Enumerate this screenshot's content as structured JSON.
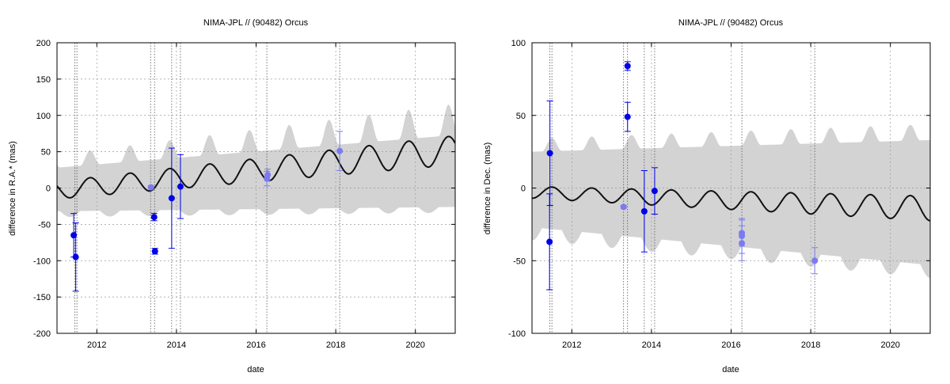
{
  "colors": {
    "envelope": "#d3d3d3",
    "curve": "#111111",
    "dark_points": "#0000e6",
    "light_points": "#7b7bf0",
    "grid": "#9a9a9a"
  },
  "chart_data": [
    {
      "type": "scatter",
      "title": "NIMA-JPL // (90482) Orcus",
      "xlabel": "date",
      "ylabel": "difference in R.A.* (mas)",
      "xlim": [
        2011.0,
        2021.0
      ],
      "ylim": [
        -200,
        200
      ],
      "xticks": [
        2012,
        2014,
        2016,
        2018,
        2020
      ],
      "yticks": [
        -200,
        -150,
        -100,
        -50,
        0,
        50,
        100,
        150,
        200
      ],
      "grid": true,
      "vlines": [
        2011.45,
        2011.5,
        2013.35,
        2013.45,
        2013.88,
        2014.1,
        2016.27,
        2018.1
      ],
      "curve": {
        "start": 2011.0,
        "end": 2021.0,
        "offset": -3,
        "trend": 5.5,
        "amp0": 12,
        "amp1": 0.8,
        "period": 1.0,
        "phase": 0.58
      },
      "envelope": {
        "upper_base": 28,
        "upper_trend": 4.5,
        "upper_amp": 18,
        "upper_amp_trend": 2.5,
        "lower_base": -32,
        "lower_trend": 0.6,
        "lower_amp": 8
      },
      "series": [
        {
          "style": "dark",
          "points": [
            {
              "x": 2011.42,
              "y": -65,
              "err": 30
            },
            {
              "x": 2011.47,
              "y": -95,
              "err": 47
            },
            {
              "x": 2013.44,
              "y": -40,
              "err": 5
            },
            {
              "x": 2013.46,
              "y": -87,
              "err": 4
            },
            {
              "x": 2013.88,
              "y": -14,
              "err": 69
            },
            {
              "x": 2014.1,
              "y": 2,
              "err": 44
            }
          ]
        },
        {
          "style": "light",
          "points": [
            {
              "x": 2013.36,
              "y": 1,
              "err": 2
            },
            {
              "x": 2016.27,
              "y": 13,
              "err": 10
            },
            {
              "x": 2016.29,
              "y": 18,
              "err": 8
            },
            {
              "x": 2018.1,
              "y": 51,
              "err": 27
            }
          ]
        }
      ]
    },
    {
      "type": "scatter",
      "title": "NIMA-JPL // (90482) Orcus",
      "xlabel": "date",
      "ylabel": "difference in Dec. (mas)",
      "xlim": [
        2011.0,
        2021.0
      ],
      "ylim": [
        -100,
        100
      ],
      "xticks": [
        2012,
        2014,
        2016,
        2018,
        2020
      ],
      "yticks": [
        -100,
        -50,
        0,
        50,
        100
      ],
      "grid": true,
      "vlines": [
        2011.45,
        2011.5,
        2013.3,
        2013.4,
        2013.82,
        2014.08,
        2016.27,
        2018.1
      ],
      "curve": {
        "start": 2011.0,
        "end": 2021.0,
        "offset": -3,
        "trend": -1.1,
        "amp0": 4,
        "amp1": 0.45,
        "period": 1.0,
        "phase": 0.25
      },
      "envelope": {
        "upper_base": 25,
        "upper_trend": 0.8,
        "upper_amp": 9,
        "upper_amp_trend": 0.2,
        "lower_base": -27,
        "lower_trend": -2.6,
        "lower_amp": 9
      },
      "series": [
        {
          "style": "dark",
          "points": [
            {
              "x": 2011.45,
              "y": 24,
              "err": 36
            },
            {
              "x": 2011.44,
              "y": -37,
              "err": 33
            },
            {
              "x": 2013.4,
              "y": 84,
              "err": 3
            },
            {
              "x": 2013.4,
              "y": 49,
              "err": 10
            },
            {
              "x": 2013.82,
              "y": -16,
              "err": 28
            },
            {
              "x": 2014.08,
              "y": -2,
              "err": 16
            }
          ]
        },
        {
          "style": "light",
          "points": [
            {
              "x": 2013.3,
              "y": -13,
              "err": 1
            },
            {
              "x": 2016.27,
              "y": -31,
              "err": 9
            },
            {
              "x": 2016.27,
              "y": -33,
              "err": 12
            },
            {
              "x": 2016.27,
              "y": -38,
              "err": 12
            },
            {
              "x": 2018.1,
              "y": -50,
              "err": 9
            }
          ]
        }
      ]
    }
  ]
}
